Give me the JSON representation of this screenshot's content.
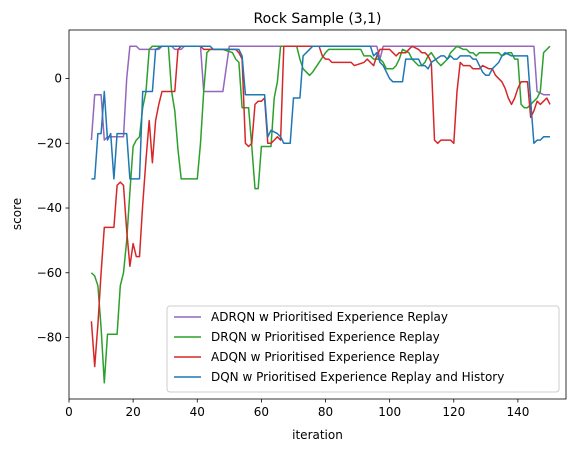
{
  "chart_data": {
    "type": "line",
    "title": "Rock Sample (3,1)",
    "xlabel": "iteration",
    "ylabel": "score",
    "xlim": [
      0,
      155
    ],
    "ylim": [
      -99,
      15
    ],
    "xticks": [
      0,
      20,
      40,
      60,
      80,
      100,
      120,
      140
    ],
    "yticks": [
      -80,
      -60,
      -40,
      -20,
      0
    ],
    "grid": false,
    "legend_position": "lower-right",
    "series": [
      {
        "name": "ADRQN w Prioritised Experience Replay",
        "color": "#9467bd",
        "points": [
          [
            7,
            -19
          ],
          [
            8,
            -5
          ],
          [
            10,
            -5
          ],
          [
            11,
            -19
          ],
          [
            12,
            -18
          ],
          [
            14,
            -18
          ],
          [
            17,
            -18
          ],
          [
            18,
            0
          ],
          [
            19,
            10
          ],
          [
            21,
            10
          ],
          [
            22,
            9
          ],
          [
            25,
            9
          ],
          [
            27,
            9
          ],
          [
            28,
            9
          ],
          [
            29,
            10
          ],
          [
            32,
            10
          ],
          [
            33,
            9
          ],
          [
            35,
            9
          ],
          [
            36,
            10
          ],
          [
            41,
            10
          ],
          [
            42,
            -4
          ],
          [
            48,
            -4
          ],
          [
            50,
            10
          ],
          [
            56,
            10
          ],
          [
            57,
            10
          ],
          [
            61,
            10
          ],
          [
            62,
            10
          ],
          [
            64,
            10
          ],
          [
            66,
            10
          ],
          [
            67,
            10
          ],
          [
            96,
            10
          ],
          [
            97,
            6
          ],
          [
            98,
            10
          ],
          [
            145,
            10
          ],
          [
            146,
            -4
          ],
          [
            148,
            -5
          ],
          [
            150,
            -5
          ]
        ]
      },
      {
        "name": "DRQN w Prioritised Experience Replay",
        "color": "#2ca02c",
        "points": [
          [
            7,
            -60
          ],
          [
            8,
            -61
          ],
          [
            9,
            -64
          ],
          [
            10,
            -77
          ],
          [
            11,
            -94
          ],
          [
            12,
            -79
          ],
          [
            15,
            -79
          ],
          [
            16,
            -64
          ],
          [
            17,
            -60
          ],
          [
            18,
            -50
          ],
          [
            19,
            -35
          ],
          [
            20,
            -21
          ],
          [
            21,
            -19
          ],
          [
            22,
            -18
          ],
          [
            23,
            -9
          ],
          [
            24,
            -4
          ],
          [
            25,
            9
          ],
          [
            26,
            10
          ],
          [
            31,
            10
          ],
          [
            32,
            -4
          ],
          [
            33,
            -10
          ],
          [
            34,
            -22
          ],
          [
            35,
            -31
          ],
          [
            40,
            -31
          ],
          [
            41,
            -20
          ],
          [
            42,
            -4
          ],
          [
            43,
            8
          ],
          [
            44,
            9
          ],
          [
            47,
            9
          ],
          [
            48,
            9
          ],
          [
            51,
            8
          ],
          [
            52,
            6
          ],
          [
            53,
            5
          ],
          [
            54,
            -9
          ],
          [
            56,
            -9
          ],
          [
            57,
            -21
          ],
          [
            58,
            -34
          ],
          [
            59,
            -34
          ],
          [
            60,
            -21
          ],
          [
            63,
            -21
          ],
          [
            64,
            -6
          ],
          [
            65,
            -1
          ],
          [
            66,
            10
          ],
          [
            71,
            10
          ],
          [
            72,
            6
          ],
          [
            73,
            3
          ],
          [
            75,
            1
          ],
          [
            76,
            2
          ],
          [
            78,
            5
          ],
          [
            80,
            8
          ],
          [
            81,
            9
          ],
          [
            84,
            9
          ],
          [
            85,
            9
          ],
          [
            88,
            9
          ],
          [
            91,
            9
          ],
          [
            92,
            7
          ],
          [
            94,
            7
          ],
          [
            95,
            6
          ],
          [
            96,
            6
          ],
          [
            97,
            6
          ],
          [
            98,
            5
          ],
          [
            99,
            3
          ],
          [
            100,
            3
          ],
          [
            101,
            3
          ],
          [
            102,
            4
          ],
          [
            103,
            6
          ],
          [
            104,
            9
          ],
          [
            106,
            8
          ],
          [
            107,
            6
          ],
          [
            108,
            5
          ],
          [
            109,
            4
          ],
          [
            110,
            4
          ],
          [
            111,
            5
          ],
          [
            112,
            7
          ],
          [
            113,
            8
          ],
          [
            115,
            5
          ],
          [
            116,
            4
          ],
          [
            117,
            5
          ],
          [
            118,
            6
          ],
          [
            119,
            8
          ],
          [
            120,
            9
          ],
          [
            121,
            10
          ],
          [
            123,
            9
          ],
          [
            124,
            9
          ],
          [
            125,
            8
          ],
          [
            126,
            8
          ],
          [
            127,
            7
          ],
          [
            128,
            8
          ],
          [
            129,
            8
          ],
          [
            130,
            8
          ],
          [
            131,
            8
          ],
          [
            132,
            8
          ],
          [
            133,
            8
          ],
          [
            134,
            8
          ],
          [
            135,
            7
          ],
          [
            137,
            8
          ],
          [
            138,
            8
          ],
          [
            139,
            6
          ],
          [
            140,
            6
          ],
          [
            141,
            -8
          ],
          [
            142,
            -9
          ],
          [
            143,
            -9
          ],
          [
            144,
            -8
          ],
          [
            145,
            -7
          ],
          [
            146,
            -6
          ],
          [
            147,
            -4
          ],
          [
            148,
            8
          ],
          [
            149,
            9
          ],
          [
            150,
            10
          ]
        ]
      },
      {
        "name": "ADQN w Prioritised Experience Replay",
        "color": "#d62728",
        "points": [
          [
            7,
            -75
          ],
          [
            8,
            -89
          ],
          [
            9,
            -76
          ],
          [
            10,
            -60
          ],
          [
            11,
            -46
          ],
          [
            12,
            -46
          ],
          [
            14,
            -46
          ],
          [
            15,
            -33
          ],
          [
            16,
            -32
          ],
          [
            17,
            -33
          ],
          [
            18,
            -47
          ],
          [
            19,
            -58
          ],
          [
            20,
            -51
          ],
          [
            21,
            -55
          ],
          [
            22,
            -55
          ],
          [
            23,
            -39
          ],
          [
            24,
            -25
          ],
          [
            25,
            -13
          ],
          [
            26,
            -26
          ],
          [
            27,
            -13
          ],
          [
            28,
            -8
          ],
          [
            29,
            -4
          ],
          [
            33,
            -4
          ],
          [
            34,
            9
          ],
          [
            35,
            10
          ],
          [
            41,
            10
          ],
          [
            42,
            9
          ],
          [
            52,
            9
          ],
          [
            53,
            8
          ],
          [
            54,
            6
          ],
          [
            55,
            -20
          ],
          [
            56,
            -21
          ],
          [
            57,
            -20
          ],
          [
            58,
            -8
          ],
          [
            59,
            -7
          ],
          [
            60,
            -7
          ],
          [
            61,
            -6
          ],
          [
            62,
            -20
          ],
          [
            63,
            -20
          ],
          [
            64,
            -19
          ],
          [
            65,
            -18
          ],
          [
            66,
            -19
          ],
          [
            67,
            10
          ],
          [
            78,
            10
          ],
          [
            79,
            7
          ],
          [
            80,
            6
          ],
          [
            81,
            6
          ],
          [
            82,
            5
          ],
          [
            88,
            5
          ],
          [
            89,
            4
          ],
          [
            92,
            5
          ],
          [
            93,
            6
          ],
          [
            94,
            5
          ],
          [
            95,
            4
          ],
          [
            96,
            7
          ],
          [
            97,
            9
          ],
          [
            98,
            9
          ],
          [
            100,
            9
          ],
          [
            101,
            8
          ],
          [
            102,
            7
          ],
          [
            103,
            8
          ],
          [
            104,
            8
          ],
          [
            105,
            8
          ],
          [
            107,
            10
          ],
          [
            109,
            9
          ],
          [
            110,
            8
          ],
          [
            111,
            8
          ],
          [
            112,
            7
          ],
          [
            113,
            5
          ],
          [
            114,
            -19
          ],
          [
            115,
            -20
          ],
          [
            116,
            -19
          ],
          [
            117,
            -19
          ],
          [
            119,
            -19
          ],
          [
            120,
            -20
          ],
          [
            121,
            -4
          ],
          [
            122,
            5
          ],
          [
            123,
            4
          ],
          [
            125,
            4
          ],
          [
            126,
            3
          ],
          [
            128,
            3
          ],
          [
            129,
            4
          ],
          [
            131,
            3
          ],
          [
            132,
            3
          ],
          [
            133,
            1
          ],
          [
            135,
            -1
          ],
          [
            136,
            -3
          ],
          [
            137,
            -6
          ],
          [
            138,
            -8
          ],
          [
            139,
            -6
          ],
          [
            140,
            -3
          ],
          [
            141,
            -1
          ],
          [
            143,
            -1
          ],
          [
            144,
            -12
          ],
          [
            145,
            -10
          ],
          [
            146,
            -7
          ],
          [
            147,
            -8
          ],
          [
            148,
            -7
          ],
          [
            149,
            -6
          ],
          [
            150,
            -8
          ]
        ]
      },
      {
        "name": "DQN w Prioritised Experience Replay and History",
        "color": "#1f77b4",
        "points": [
          [
            7,
            -31
          ],
          [
            8,
            -31
          ],
          [
            9,
            -17
          ],
          [
            10,
            -17
          ],
          [
            11,
            -4
          ],
          [
            12,
            -19
          ],
          [
            13,
            -17
          ],
          [
            14,
            -31
          ],
          [
            15,
            -17
          ],
          [
            18,
            -17
          ],
          [
            19,
            -31
          ],
          [
            22,
            -31
          ],
          [
            23,
            -4
          ],
          [
            25,
            -4
          ],
          [
            26,
            -4
          ],
          [
            27,
            9
          ],
          [
            29,
            10
          ],
          [
            33,
            10
          ],
          [
            34,
            10
          ],
          [
            44,
            10
          ],
          [
            45,
            9
          ],
          [
            52,
            9
          ],
          [
            53,
            9
          ],
          [
            54,
            7
          ],
          [
            55,
            -5
          ],
          [
            60,
            -5
          ],
          [
            61,
            -5
          ],
          [
            62,
            -18
          ],
          [
            63,
            -16
          ],
          [
            65,
            -17
          ],
          [
            66,
            -18
          ],
          [
            67,
            -20
          ],
          [
            69,
            -20
          ],
          [
            70,
            -6
          ],
          [
            72,
            -6
          ],
          [
            73,
            7
          ],
          [
            74,
            8
          ],
          [
            76,
            10
          ],
          [
            77,
            10
          ],
          [
            78,
            10
          ],
          [
            90,
            10
          ],
          [
            91,
            10
          ],
          [
            94,
            10
          ],
          [
            95,
            7
          ],
          [
            96,
            8
          ],
          [
            97,
            5
          ],
          [
            98,
            4
          ],
          [
            99,
            2
          ],
          [
            100,
            0
          ],
          [
            101,
            -1
          ],
          [
            104,
            -1
          ],
          [
            105,
            6
          ],
          [
            107,
            6
          ],
          [
            108,
            6
          ],
          [
            109,
            6
          ],
          [
            110,
            4
          ],
          [
            111,
            4
          ],
          [
            112,
            3
          ],
          [
            113,
            5
          ],
          [
            116,
            7
          ],
          [
            117,
            7
          ],
          [
            118,
            6
          ],
          [
            119,
            7
          ],
          [
            120,
            6
          ],
          [
            121,
            6
          ],
          [
            122,
            7
          ],
          [
            123,
            7
          ],
          [
            125,
            7
          ],
          [
            126,
            6
          ],
          [
            127,
            6
          ],
          [
            128,
            4
          ],
          [
            129,
            2
          ],
          [
            130,
            1
          ],
          [
            131,
            1
          ],
          [
            132,
            3
          ],
          [
            133,
            4
          ],
          [
            134,
            5
          ],
          [
            135,
            7
          ],
          [
            136,
            8
          ],
          [
            138,
            7
          ],
          [
            143,
            7
          ],
          [
            144,
            -7
          ],
          [
            145,
            -20
          ],
          [
            146,
            -19
          ],
          [
            147,
            -19
          ],
          [
            148,
            -18
          ],
          [
            149,
            -18
          ],
          [
            150,
            -18
          ]
        ]
      }
    ]
  }
}
